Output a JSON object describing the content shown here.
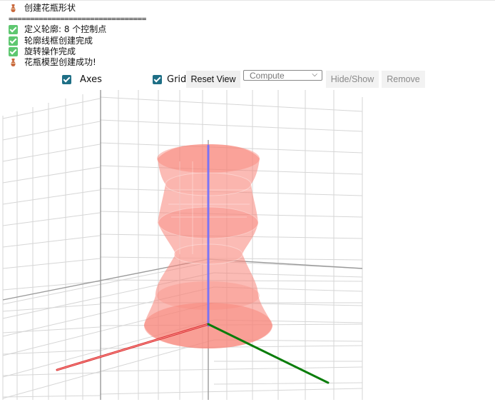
{
  "console": {
    "title": "创建花瓶形状",
    "separator": "================================",
    "line1": "定义轮廓: 8 个控制点",
    "line2": "轮廓线框创建完成",
    "line3": "旋转操作完成",
    "line4": "花瓶模型创建成功!"
  },
  "toolbar": {
    "axes_label": "Axes",
    "grid_label": "Grid",
    "reset_label": "Reset View",
    "compute_value": "Compute",
    "hide_show_label": "Hide/Show",
    "remove_label": "Remove"
  },
  "colors": {
    "vase": "#f88478",
    "x_axis": "#d62828",
    "y_axis": "#0a7d0a",
    "z_axis": "#6f6fff",
    "grid": "#d6d6d6"
  }
}
